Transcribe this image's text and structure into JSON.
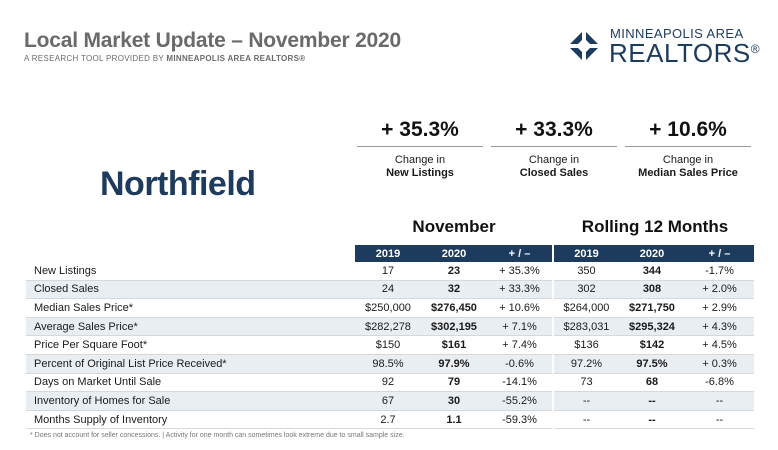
{
  "header": {
    "title": "Local Market Update – November 2020",
    "subtitle_prefix": "A RESEARCH TOOL PROVIDED BY",
    "subtitle_org": "MINNEAPOLIS AREA REALTORS®"
  },
  "logo": {
    "line1": "MINNEAPOLIS AREA",
    "line2": "REALTORS",
    "mark": "®",
    "color": "#1d3b5c"
  },
  "city": "Northfield",
  "highlights": [
    {
      "value": "+ 35.3%",
      "label1": "Change in",
      "label2": "New Listings"
    },
    {
      "value": "+ 33.3%",
      "label1": "Change in",
      "label2": "Closed Sales"
    },
    {
      "value": "+ 10.6%",
      "label1": "Change in",
      "label2": "Median Sales Price"
    }
  ],
  "periods": {
    "month": "November",
    "rolling": "Rolling 12 Months"
  },
  "columns": [
    "2019",
    "2020",
    "+ / –",
    "2019",
    "2020",
    "+ / –"
  ],
  "rows": [
    {
      "label": "New Listings",
      "cells": [
        "17",
        "23",
        "+ 35.3%",
        "350",
        "344",
        "-1.7%"
      ]
    },
    {
      "label": "Closed Sales",
      "cells": [
        "24",
        "32",
        "+ 33.3%",
        "302",
        "308",
        "+ 2.0%"
      ]
    },
    {
      "label": "Median Sales Price*",
      "cells": [
        "$250,000",
        "$276,450",
        "+ 10.6%",
        "$264,000",
        "$271,750",
        "+ 2.9%"
      ]
    },
    {
      "label": "Average Sales Price*",
      "cells": [
        "$282,278",
        "$302,195",
        "+ 7.1%",
        "$283,031",
        "$295,324",
        "+ 4.3%"
      ]
    },
    {
      "label": "Price Per Square Foot*",
      "cells": [
        "$150",
        "$161",
        "+ 7.4%",
        "$136",
        "$142",
        "+ 4.5%"
      ]
    },
    {
      "label": "Percent of Original List Price Received*",
      "cells": [
        "98.5%",
        "97.9%",
        "-0.6%",
        "97.2%",
        "97.5%",
        "+ 0.3%"
      ]
    },
    {
      "label": "Days on Market Until Sale",
      "cells": [
        "92",
        "79",
        "-14.1%",
        "73",
        "68",
        "-6.8%"
      ]
    },
    {
      "label": "Inventory of Homes for Sale",
      "cells": [
        "67",
        "30",
        "-55.2%",
        "--",
        "--",
        "--"
      ]
    },
    {
      "label": "Months Supply of Inventory",
      "cells": [
        "2.7",
        "1.1",
        "-59.3%",
        "--",
        "--",
        "--"
      ]
    }
  ],
  "footnote": "* Does not account for seller concessions.  |  Activity for one month can sometimes look extreme due to small sample size."
}
